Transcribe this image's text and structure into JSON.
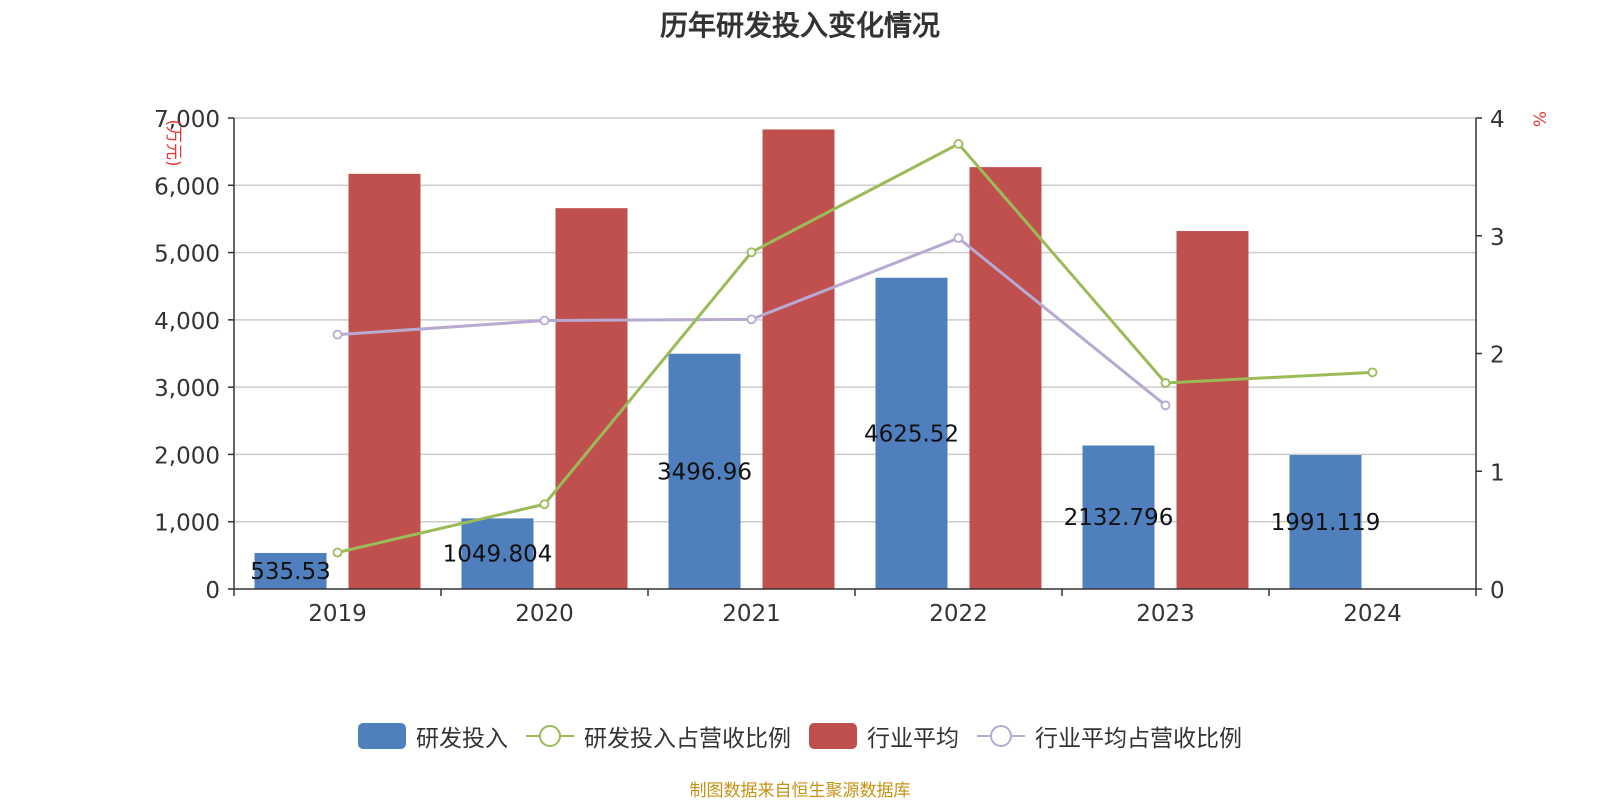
{
  "colors": {
    "rd_bar": "#4f7fbd",
    "industry_bar": "#c0504d",
    "rd_ratio_line": "#9bbb59",
    "industry_ratio_line": "#b7a9d1",
    "axis_unit": "#e53935",
    "source": "#c69214"
  },
  "chart_data": {
    "type": "bar",
    "title": "历年研发投入变化情况",
    "categories": [
      "2019",
      "2020",
      "2021",
      "2022",
      "2023",
      "2024"
    ],
    "y_left": {
      "label": "(万元)",
      "min": 0,
      "max": 7000,
      "ticks": [
        "0",
        "1,000",
        "2,000",
        "3,000",
        "4,000",
        "5,000",
        "6,000",
        "7,000"
      ]
    },
    "y_right": {
      "label": "%",
      "min": 0,
      "max": 4,
      "ticks": [
        "0",
        "1",
        "2",
        "3",
        "4"
      ]
    },
    "grid": true,
    "legend_position": "bottom",
    "series": [
      {
        "name": "研发投入",
        "type": "bar",
        "axis": "left",
        "values": [
          535.53,
          1049.804,
          3496.96,
          4625.52,
          2132.796,
          1991.119
        ],
        "labels": [
          "535.53",
          "1049.804",
          "3496.96",
          "4625.52",
          "2132.796",
          "1991.119"
        ]
      },
      {
        "name": "行业平均",
        "type": "bar",
        "axis": "left",
        "values": [
          6170,
          5660,
          6830,
          6270,
          5320,
          null
        ]
      },
      {
        "name": "研发投入占营收比例",
        "type": "line",
        "axis": "right",
        "values": [
          0.31,
          0.72,
          2.86,
          3.78,
          1.75,
          1.84
        ]
      },
      {
        "name": "行业平均占营收比例",
        "type": "line",
        "axis": "right",
        "values": [
          2.16,
          2.28,
          2.29,
          2.98,
          1.56,
          null
        ]
      }
    ]
  },
  "source_text": "制图数据来自恒生聚源数据库"
}
